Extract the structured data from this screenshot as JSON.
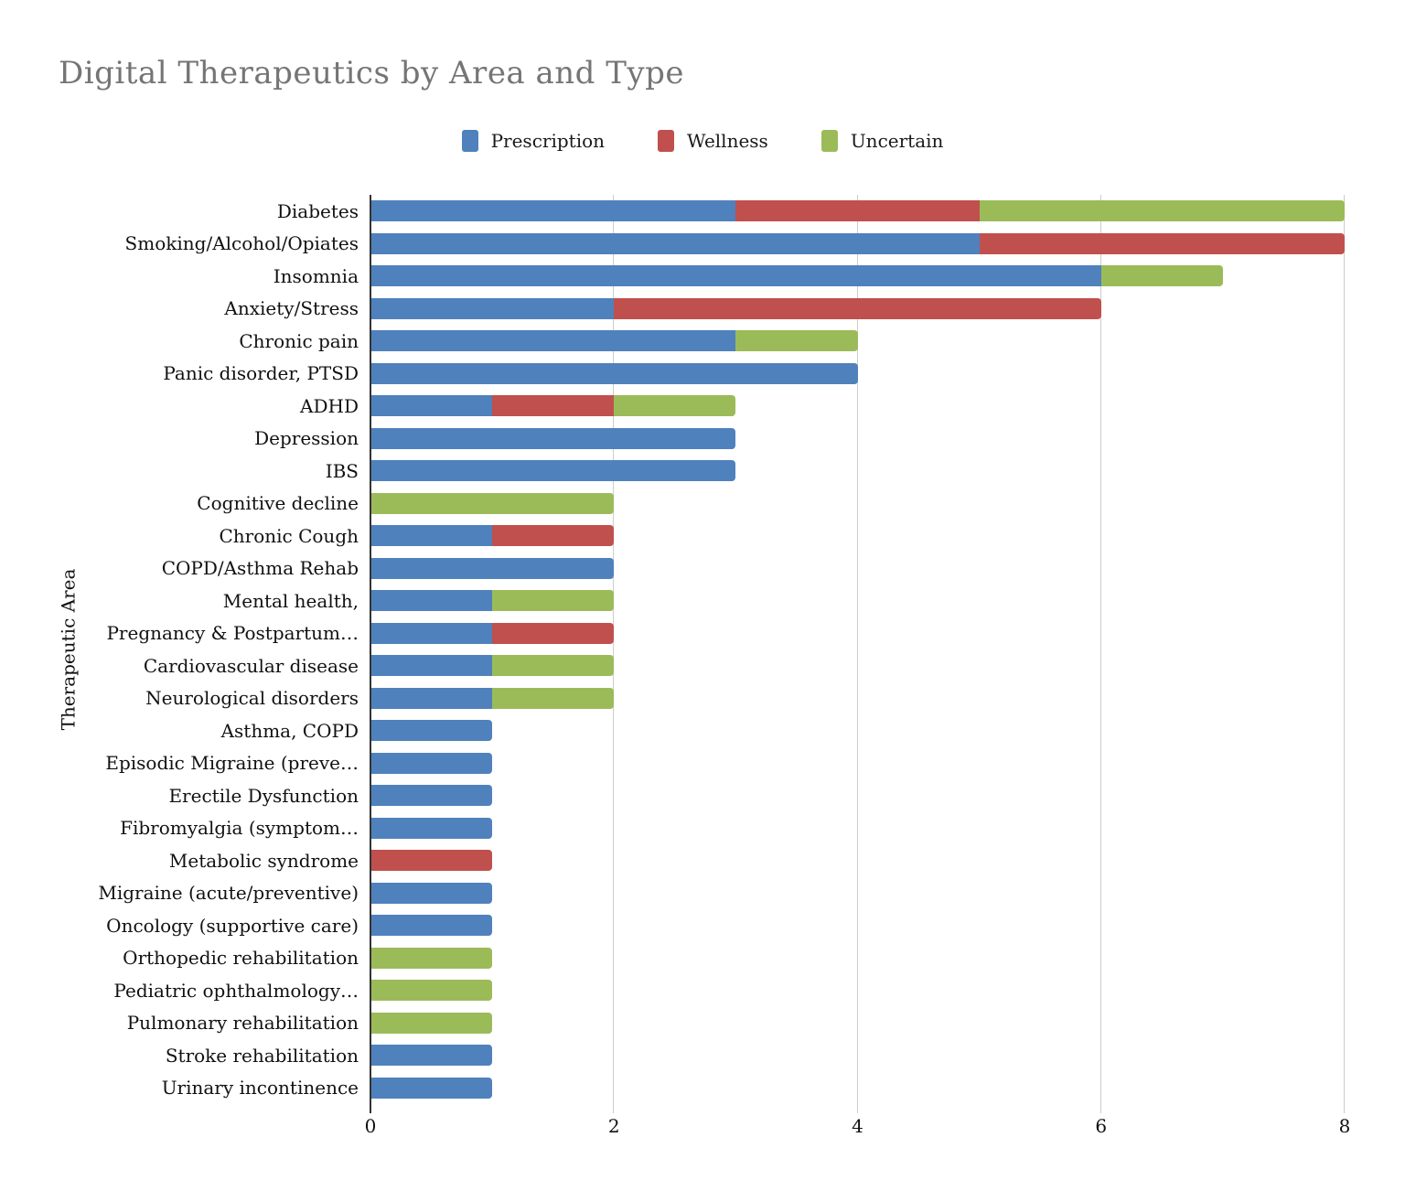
{
  "chart_data": {
    "type": "bar",
    "orientation": "horizontal",
    "stacked": true,
    "title": "Digital Therapeutics by Area and Type",
    "xlabel": "",
    "ylabel": "Therapeutic Area",
    "xlim": [
      0,
      8
    ],
    "x_ticks": [
      0,
      2,
      4,
      6,
      8
    ],
    "grid": "vertical-on",
    "legend_position": "top-center",
    "categories": [
      "Diabetes",
      "Smoking/Alcohol/Opiates",
      "Insomnia",
      "Anxiety/Stress",
      "Chronic pain",
      "Panic disorder, PTSD",
      "ADHD",
      "Depression",
      "IBS",
      "Cognitive decline",
      "Chronic Cough",
      "COPD/Asthma Rehab",
      "Mental health,",
      "Pregnancy & Postpartum…",
      "Cardiovascular disease",
      "Neurological disorders",
      "Asthma, COPD",
      "Episodic Migraine (preve…",
      "Erectile Dysfunction",
      "Fibromyalgia (symptom…",
      "Metabolic syndrome",
      "Migraine (acute/preventive)",
      "Oncology (supportive care)",
      "Orthopedic rehabilitation",
      "Pediatric ophthalmology…",
      "Pulmonary rehabilitation",
      "Stroke rehabilitation",
      "Urinary incontinence"
    ],
    "series": [
      {
        "name": "Prescription",
        "color": "#4F81BD",
        "values": [
          3,
          5,
          6,
          2,
          3,
          4,
          1,
          3,
          3,
          0,
          1,
          2,
          1,
          1,
          1,
          1,
          1,
          1,
          1,
          1,
          0,
          1,
          1,
          0,
          0,
          0,
          1,
          1
        ]
      },
      {
        "name": "Wellness",
        "color": "#C0504D",
        "values": [
          2,
          3,
          0,
          4,
          0,
          0,
          1,
          0,
          0,
          0,
          1,
          0,
          0,
          1,
          0,
          0,
          0,
          0,
          0,
          0,
          1,
          0,
          0,
          0,
          0,
          0,
          0,
          0
        ]
      },
      {
        "name": "Uncertain",
        "color": "#9BBB59",
        "values": [
          3,
          0,
          1,
          0,
          1,
          0,
          1,
          0,
          0,
          2,
          0,
          0,
          1,
          0,
          1,
          1,
          0,
          0,
          0,
          0,
          0,
          0,
          0,
          1,
          1,
          1,
          0,
          0
        ]
      }
    ],
    "style": {
      "gridline_color": "#CCCCCC",
      "axis_line_color": "#333333",
      "title_color": "#757575",
      "text_color": "#111111"
    }
  }
}
